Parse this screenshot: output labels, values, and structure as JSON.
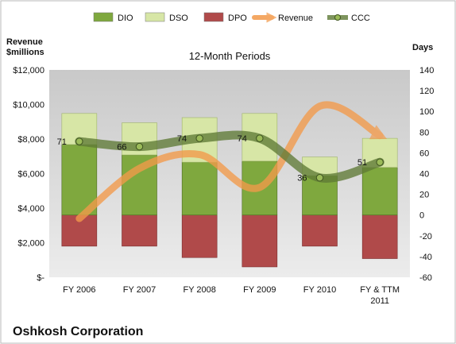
{
  "chart_data": {
    "type": "bar",
    "title": "12-Month Periods",
    "company": "Oshkosh Corporation",
    "left_axis_label_line1": "Revenue",
    "left_axis_label_line2": "$millions",
    "right_axis_label": "Days",
    "categories": [
      {
        "line1": "FY 2006",
        "line2": ""
      },
      {
        "line1": "FY 2007",
        "line2": ""
      },
      {
        "line1": "FY 2008",
        "line2": ""
      },
      {
        "line1": "FY 2009",
        "line2": ""
      },
      {
        "line1": "FY 2010",
        "line2": ""
      },
      {
        "line1": "FY & TTM",
        "line2": "2011"
      }
    ],
    "left_axis": {
      "min": 0,
      "max": 12000,
      "ticks": [
        "$-",
        "$2,000",
        "$4,000",
        "$6,000",
        "$8,000",
        "$10,000",
        "$12,000"
      ]
    },
    "right_axis": {
      "min": -60,
      "max": 140,
      "step": 20
    },
    "legend": [
      "DIO",
      "DSO",
      "DPO",
      "Revenue",
      "CCC"
    ],
    "legend_position": "top",
    "series": {
      "DIO": [
        68,
        58,
        51,
        52,
        38,
        46
      ],
      "DSO": [
        30,
        31,
        43,
        46,
        18,
        28
      ],
      "DPO": [
        -30,
        -30,
        -41,
        -50,
        -30,
        -42
      ],
      "CCC": [
        71,
        66,
        74,
        74,
        36,
        51
      ],
      "Revenue": [
        3400,
        6300,
        7100,
        5200,
        9900,
        8200
      ]
    },
    "ccc_labels": [
      "71",
      "66",
      "74",
      "74",
      "36",
      "51"
    ],
    "colors": {
      "DIO": "#7fa83e",
      "DSO": "#d7e6a6",
      "DPO": "#b04a4a",
      "Revenue": "#f39a4a",
      "CCC": "#5f7a36",
      "plot_bg": "#bfbfbf"
    }
  }
}
